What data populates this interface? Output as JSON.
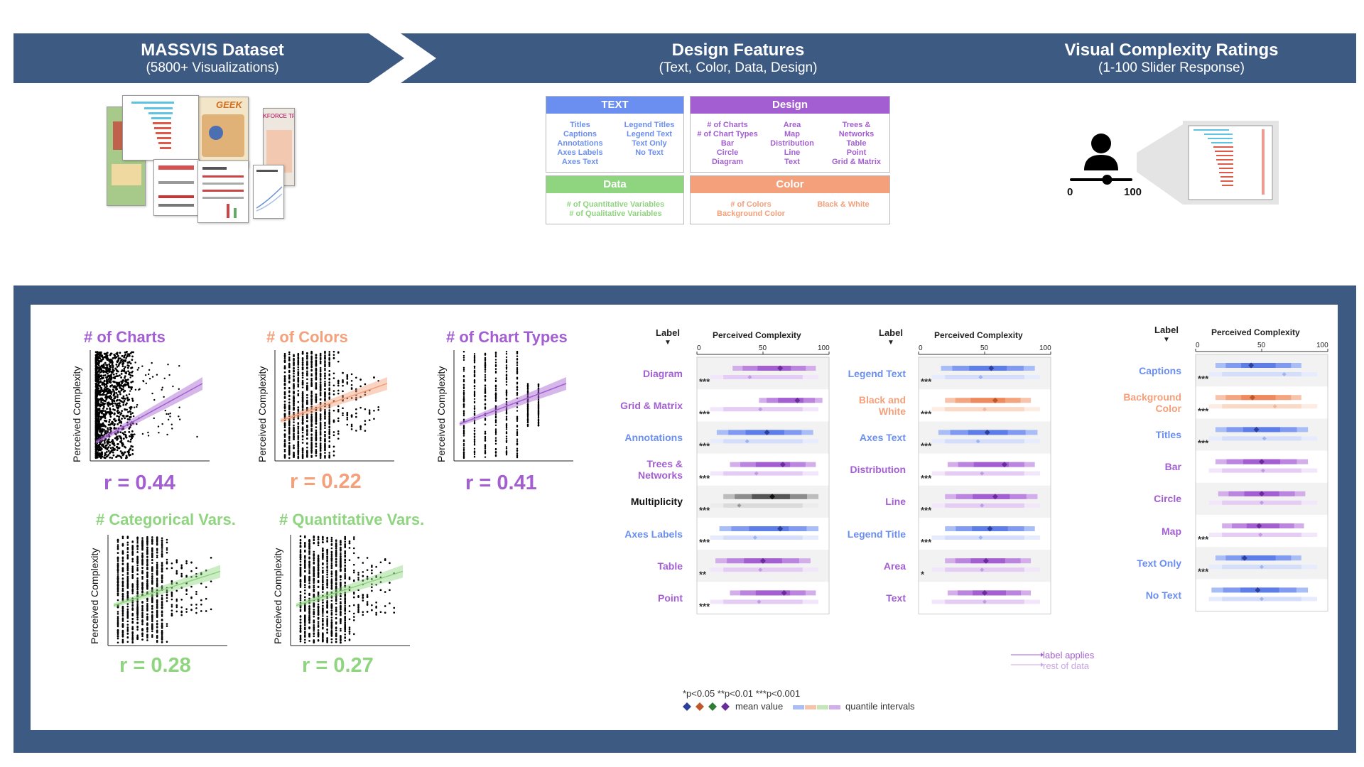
{
  "header": {
    "dataset_title": "MASSVIS Dataset",
    "dataset_sub": "(5800+ Visualizations)",
    "features_title": "Design Features",
    "features_sub": "(Text, Color, Data, Design)",
    "ratings_title": "Visual Complexity Ratings",
    "ratings_sub": "(1-100 Slider Response)"
  },
  "colors": {
    "banner": "#3d5a83",
    "text": "#6b8ff0",
    "design": "#a35fd1",
    "data": "#8fd47f",
    "color": "#f4a07a",
    "multiplicity": "#111111"
  },
  "thumbs": {
    "geek_label": "GEEK",
    "workforce_label": "WORKFORCE TRENDS"
  },
  "features": {
    "text": {
      "header": "TEXT",
      "col1": [
        "Titles",
        "Captions",
        "Annotations",
        "Axes Labels",
        "Axes Text"
      ],
      "col2": [
        "Legend Titles",
        "Legend Text",
        "Text Only",
        "No Text"
      ]
    },
    "design": {
      "header": "Design",
      "col1": [
        "# of Charts",
        "# of Chart Types",
        "Bar",
        "Circle",
        "Diagram"
      ],
      "col2": [
        "Area",
        "Map",
        "Distribution",
        "Line",
        "Text"
      ],
      "col3": [
        "Trees &",
        "Networks",
        "Table",
        "Point",
        "Grid & Matrix"
      ]
    },
    "data": {
      "header": "Data",
      "col1": [
        "# of Quantitative Variables",
        "# of Qualitative Variables"
      ]
    },
    "color": {
      "header": "Color",
      "col1": [
        "# of Colors",
        "Background Color"
      ],
      "col2": [
        "Black & White"
      ]
    }
  },
  "rater": {
    "min": "0",
    "max": "100",
    "value": 0.6
  },
  "scatter": [
    {
      "title": "# of Charts",
      "r": "r = 0.44",
      "ylabel": "Perceived Complexity",
      "color": "#a35fd1"
    },
    {
      "title": "# of Colors",
      "r": "r = 0.22",
      "ylabel": "Perceived Complexity",
      "color": "#f4a07a"
    },
    {
      "title": "# of Chart Types",
      "r": "r = 0.41",
      "ylabel": "Perceived Complexity",
      "color": "#a35fd1"
    },
    {
      "title": "# Categorical Vars.",
      "r": "r = 0.28",
      "ylabel": "Perceived Complexity",
      "color": "#8fd47f"
    },
    {
      "title": "# Quantitative Vars.",
      "r": "r = 0.27",
      "ylabel": "Perceived Complexity",
      "color": "#8fd47f"
    }
  ],
  "forest_common": {
    "label_header": "Label",
    "value_header": "Perceived Complexity",
    "ticks": [
      "0",
      "50",
      "100"
    ]
  },
  "forest": [
    {
      "rows": [
        {
          "label": "Diagram",
          "cat": "design",
          "sig": "***",
          "mean": 63,
          "rest": 40,
          "lo": 27,
          "hi": 90
        },
        {
          "label": "Grid & Matrix",
          "cat": "design",
          "sig": "***",
          "mean": 76,
          "rest": 48,
          "lo": 47,
          "hi": 95
        },
        {
          "label": "Annotations",
          "cat": "text",
          "sig": "***",
          "mean": 53,
          "rest": 38,
          "lo": 15,
          "hi": 88
        },
        {
          "label": "Trees &\nNetworks",
          "cat": "design",
          "sig": "***",
          "mean": 65,
          "rest": 45,
          "lo": 25,
          "hi": 90
        },
        {
          "label": "Multiplicity",
          "cat": "multiplicity",
          "sig": "***",
          "mean": 57,
          "rest": 32,
          "lo": 20,
          "hi": 92
        },
        {
          "label": "Axes Labels",
          "cat": "text",
          "sig": "***",
          "mean": 63,
          "rest": 44,
          "lo": 17,
          "hi": 92
        },
        {
          "label": "Table",
          "cat": "design",
          "sig": "**",
          "mean": 50,
          "rest": 48,
          "lo": 14,
          "hi": 86
        },
        {
          "label": "Point",
          "cat": "design",
          "sig": "***",
          "mean": 66,
          "rest": 47,
          "lo": 25,
          "hi": 90
        }
      ]
    },
    {
      "rows": [
        {
          "label": "Legend Text",
          "cat": "text",
          "sig": "***",
          "mean": 55,
          "rest": 47,
          "lo": 17,
          "hi": 88
        },
        {
          "label": "Black and\nWhite",
          "cat": "color",
          "sig": "***",
          "mean": 58,
          "rest": 50,
          "lo": 20,
          "hi": 85
        },
        {
          "label": "Axes Text",
          "cat": "text",
          "sig": "***",
          "mean": 52,
          "rest": 45,
          "lo": 15,
          "hi": 90
        },
        {
          "label": "Distribution",
          "cat": "design",
          "sig": "***",
          "mean": 65,
          "rest": 48,
          "lo": 22,
          "hi": 88
        },
        {
          "label": "Line",
          "cat": "design",
          "sig": "***",
          "mean": 58,
          "rest": 48,
          "lo": 20,
          "hi": 90
        },
        {
          "label": "Legend Title",
          "cat": "text",
          "sig": "***",
          "mean": 54,
          "rest": 47,
          "lo": 20,
          "hi": 88
        },
        {
          "label": "Area",
          "cat": "design",
          "sig": "*",
          "mean": 51,
          "rest": 48,
          "lo": 20,
          "hi": 85
        },
        {
          "label": "Text",
          "cat": "design",
          "sig": "",
          "mean": 50,
          "rest": 50,
          "lo": 22,
          "hi": 85
        }
      ]
    },
    {
      "rows": [
        {
          "label": "Captions",
          "cat": "text",
          "sig": "***",
          "mean": 42,
          "rest": 67,
          "lo": 15,
          "hi": 80
        },
        {
          "label": "Background\nColor",
          "cat": "color",
          "sig": "***",
          "mean": 43,
          "rest": 60,
          "lo": 15,
          "hi": 80
        },
        {
          "label": "Titles",
          "cat": "text",
          "sig": "***",
          "mean": 46,
          "rest": 52,
          "lo": 15,
          "hi": 85
        },
        {
          "label": "Bar",
          "cat": "design",
          "sig": "",
          "mean": 50,
          "rest": 51,
          "lo": 15,
          "hi": 85
        },
        {
          "label": "Circle",
          "cat": "design",
          "sig": "",
          "mean": 50,
          "rest": 50,
          "lo": 17,
          "hi": 83
        },
        {
          "label": "Map",
          "cat": "design",
          "sig": "***",
          "mean": 48,
          "rest": 49,
          "lo": 20,
          "hi": 82
        },
        {
          "label": "Text Only",
          "cat": "text",
          "sig": "***",
          "mean": 37,
          "rest": 50,
          "lo": 15,
          "hi": 80
        },
        {
          "label": "No Text",
          "cat": "text",
          "sig": "",
          "mean": 47,
          "rest": 50,
          "lo": 12,
          "hi": 85
        }
      ]
    }
  ],
  "legend": {
    "sig_note": "*p<0.05 **p<0.01 ***p<0.001",
    "mean_label": "mean value",
    "quantile_label": "quantile intervals",
    "label_applies": "label applies",
    "rest_of_data": "rest of data"
  }
}
